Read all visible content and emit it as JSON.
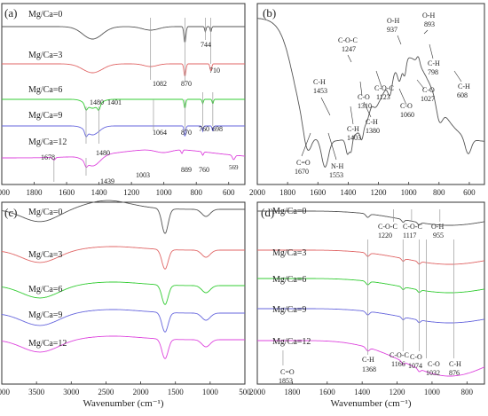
{
  "chart_data": [
    {
      "panel": "a",
      "panel_label": "(a)",
      "type": "line",
      "xlim": [
        2000,
        500
      ],
      "xticks": [
        "2000",
        "1800",
        "1600",
        "1400",
        "1200",
        "1000",
        "800",
        "600"
      ],
      "series": [
        {
          "name": "Mg/Ca=0",
          "color": "#555555"
        },
        {
          "name": "Mg/Ca=3",
          "color": "#e06666"
        },
        {
          "name": "Mg/Ca=6",
          "color": "#33cc33"
        },
        {
          "name": "Mg/Ca=9",
          "color": "#6666dd"
        },
        {
          "name": "Mg/Ca=12",
          "color": "#dd44dd"
        }
      ],
      "annotations": [
        {
          "text": "744",
          "x": 744
        },
        {
          "text": "710",
          "x": 710
        },
        {
          "text": "1082",
          "x": 1082
        },
        {
          "text": "870",
          "x": 870
        },
        {
          "text": "1480",
          "x": 1480
        },
        {
          "text": "1401",
          "x": 1401
        },
        {
          "text": "1064",
          "x": 1064
        },
        {
          "text": "870",
          "x": 870
        },
        {
          "text": "760",
          "x": 760
        },
        {
          "text": "698",
          "x": 698
        },
        {
          "text": "1678",
          "x": 1678
        },
        {
          "text": "1480",
          "x": 1480
        },
        {
          "text": "1439",
          "x": 1439
        },
        {
          "text": "1003",
          "x": 1003
        },
        {
          "text": "889",
          "x": 889
        },
        {
          "text": "760",
          "x": 760
        },
        {
          "text": "569",
          "x": 569
        }
      ]
    },
    {
      "panel": "b",
      "panel_label": "(b)",
      "type": "line",
      "xlim": [
        2000,
        500
      ],
      "xticks": [
        "2000",
        "1800",
        "1600",
        "1400",
        "1200",
        "1000",
        "800",
        "600"
      ],
      "series": [
        {
          "name": "",
          "color": "#555555"
        }
      ],
      "annotations": [
        {
          "label": "C=O",
          "value": "1670"
        },
        {
          "label": "N-H",
          "value": "1553"
        },
        {
          "label": "C-H",
          "value": "1453"
        },
        {
          "label": "C-H",
          "value": "1403"
        },
        {
          "label": "C-H",
          "value": "1380"
        },
        {
          "label": "C-O",
          "value": "1310"
        },
        {
          "label": "C-O-C",
          "value": "1247"
        },
        {
          "label": "C-O-C",
          "value": "1123"
        },
        {
          "label": "C-O",
          "value": "1060"
        },
        {
          "label": "C-O",
          "value": "1027"
        },
        {
          "label": "O-H",
          "value": "937"
        },
        {
          "label": "O-H",
          "value": "893"
        },
        {
          "label": "C-H",
          "value": "798"
        },
        {
          "label": "C-H",
          "value": "608"
        }
      ]
    },
    {
      "panel": "c",
      "panel_label": "(c)",
      "type": "line",
      "xlim": [
        4000,
        500
      ],
      "xticks": [
        "4000",
        "3500",
        "3000",
        "2500",
        "2000",
        "1500",
        "1000",
        "500"
      ],
      "xlabel": "Wavenumber (cm⁻¹)",
      "series": [
        {
          "name": "Mg/Ca=0",
          "color": "#555555"
        },
        {
          "name": "Mg/Ca=3",
          "color": "#e06666"
        },
        {
          "name": "Mg/Ca=6",
          "color": "#33cc33"
        },
        {
          "name": "Mg/Ca=9",
          "color": "#6666dd"
        },
        {
          "name": "Mg/Ca=12",
          "color": "#dd44dd"
        }
      ]
    },
    {
      "panel": "d",
      "panel_label": "(d)",
      "type": "line",
      "xlim": [
        2000,
        700
      ],
      "xticks": [
        "2000",
        "1800",
        "1600",
        "1400",
        "1200",
        "1000",
        "800"
      ],
      "xlabel": "Wavenumber (cm⁻¹)",
      "series": [
        {
          "name": "Mg/Ca=0",
          "color": "#555555"
        },
        {
          "name": "Mg/Ca=3",
          "color": "#e06666"
        },
        {
          "name": "Mg/Ca=6",
          "color": "#33cc33"
        },
        {
          "name": "Mg/Ca=9",
          "color": "#6666dd"
        },
        {
          "name": "Mg/Ca=12",
          "color": "#dd44dd"
        }
      ],
      "annotations": [
        {
          "label": "C-O-C",
          "value": "1220"
        },
        {
          "label": "C-O-C",
          "value": "1117"
        },
        {
          "label": "O-H",
          "value": "955"
        },
        {
          "label": "C=O",
          "value": "1853"
        },
        {
          "label": "C-H",
          "value": "1368"
        },
        {
          "label": "C-O-C",
          "value": "1166"
        },
        {
          "label": "C-O",
          "value": "1074"
        },
        {
          "label": "C-O",
          "value": "1032"
        },
        {
          "label": "C-H",
          "value": "876"
        }
      ]
    }
  ]
}
